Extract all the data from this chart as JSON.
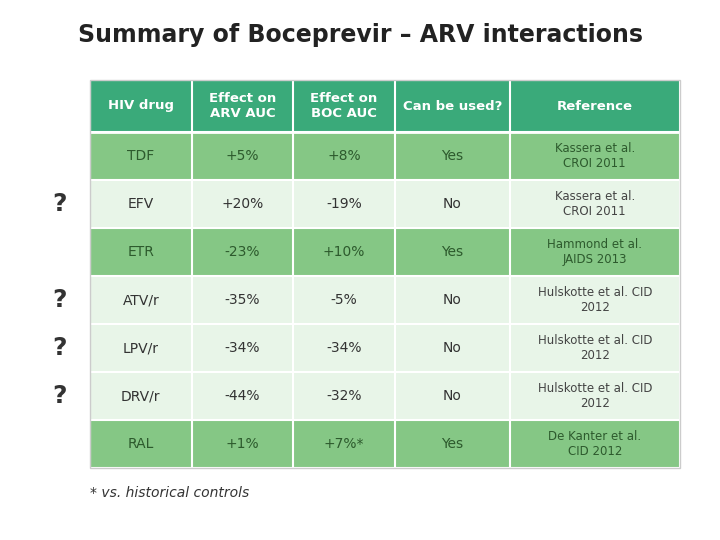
{
  "title": "Summary of Boceprevir – ARV interactions",
  "footnote": "* vs. historical controls",
  "headers": [
    "HIV drug",
    "Effect on\nARV AUC",
    "Effect on\nBOC AUC",
    "Can be used?",
    "Reference"
  ],
  "rows": [
    [
      "TDF",
      "+5%",
      "+8%",
      "Yes",
      "Kassera et al.\nCROI 2011"
    ],
    [
      "EFV",
      "+20%",
      "-19%",
      "No",
      "Kassera et al.\nCROI 2011"
    ],
    [
      "ETR",
      "-23%",
      "+10%",
      "Yes",
      "Hammond et al.\nJAIDS 2013"
    ],
    [
      "ATV/r",
      "-35%",
      "-5%",
      "No",
      "Hulskotte et al. CID\n2012"
    ],
    [
      "LPV/r",
      "-34%",
      "-34%",
      "No",
      "Hulskotte et al. CID\n2012"
    ],
    [
      "DRV/r",
      "-44%",
      "-32%",
      "No",
      "Hulskotte et al. CID\n2012"
    ],
    [
      "RAL",
      "+1%",
      "+7%*",
      "Yes",
      "De Kanter et al.\nCID 2012"
    ]
  ],
  "question_marks": [
    null,
    "?",
    null,
    "?",
    "?",
    "?",
    null
  ],
  "row_bg_yes": "#85c785",
  "row_bg_no": "#e8f5e8",
  "header_bg": "#3aaa7a",
  "header_text": "#ffffff",
  "cell_text_yes_row": "#2d5a2d",
  "cell_text_no_row": "#333333",
  "ref_text_yes_row": "#2d5a2d",
  "ref_text_no_row": "#444444",
  "qmark_color": "#333333",
  "title_color": "#222222",
  "background": "#ffffff"
}
